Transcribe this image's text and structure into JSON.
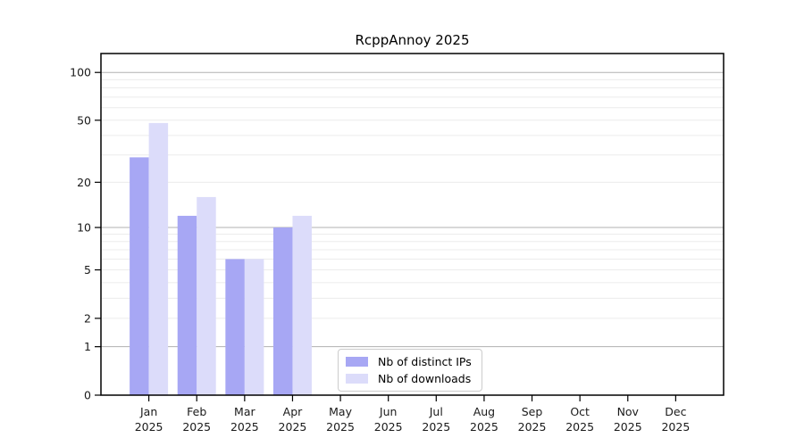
{
  "chart_data": {
    "type": "bar",
    "title": "RcppAnnoy 2025",
    "xlabel": "",
    "ylabel": "",
    "yscale": "log1p",
    "grid": true,
    "legend_position": "lower center",
    "year": "2025",
    "categories": [
      "Jan",
      "Feb",
      "Mar",
      "Apr",
      "May",
      "Jun",
      "Jul",
      "Aug",
      "Sep",
      "Oct",
      "Nov",
      "Dec"
    ],
    "yticks": [
      0,
      1,
      2,
      5,
      10,
      20,
      50,
      100
    ],
    "ylim": [
      0,
      131
    ],
    "series": [
      {
        "name": "Nb of distinct IPs",
        "color": "#a7a7f4",
        "values": [
          29,
          12,
          6,
          10,
          0,
          0,
          0,
          0,
          0,
          0,
          0,
          0
        ]
      },
      {
        "name": "Nb of downloads",
        "color": "#dcdcfa",
        "values": [
          48,
          16,
          6,
          12,
          0,
          0,
          0,
          0,
          0,
          0,
          0,
          0
        ]
      }
    ]
  },
  "colors": {
    "axis": "#000000",
    "major_grid": "#b0b0b0",
    "minor_grid": "#ececec",
    "background": "#ffffff",
    "text": "#1a1a1a"
  }
}
